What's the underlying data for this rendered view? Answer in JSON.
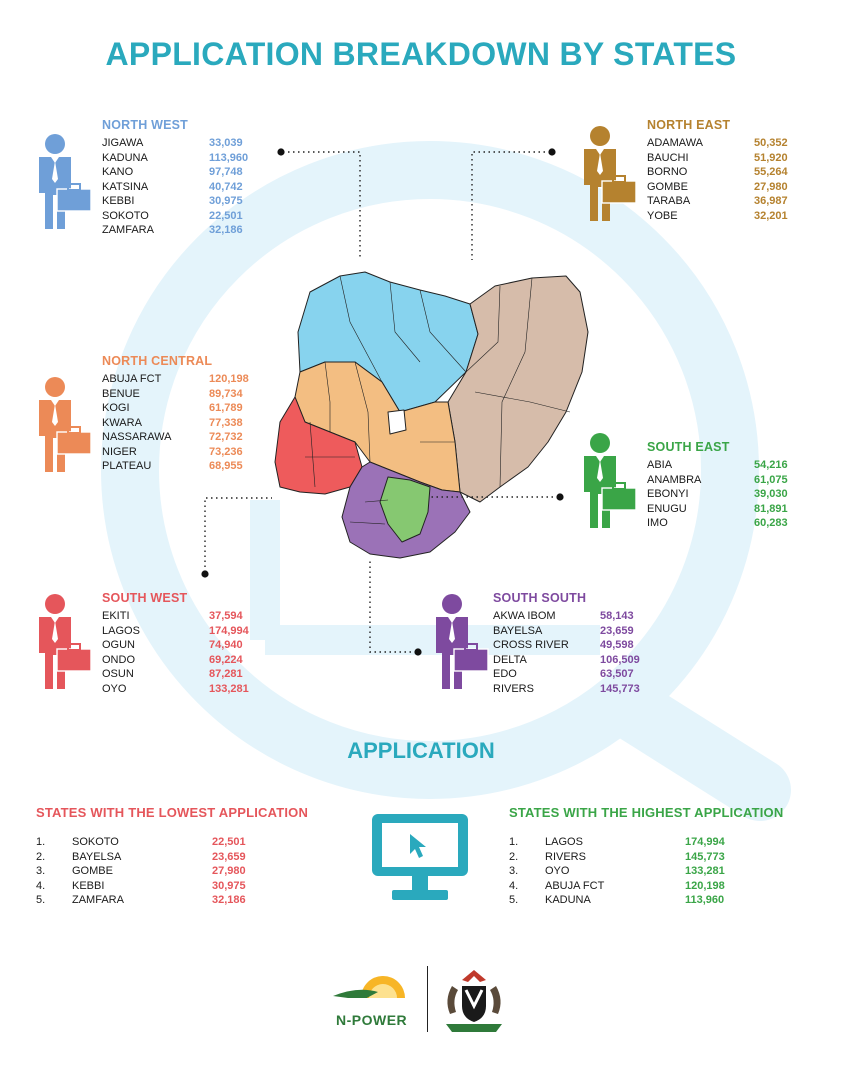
{
  "title": "APPLICATION BREAKDOWN BY STATES",
  "colors": {
    "north_west": "#6f9fd8",
    "north_east": "#b5822f",
    "north_central": "#ec8a57",
    "south_west": "#e5565b",
    "south_east": "#3aa547",
    "south_south": "#7e4a9f",
    "accent": "#2aa9bd"
  },
  "regions": {
    "north_west": {
      "name": "NORTH WEST",
      "states": [
        {
          "name": "JIGAWA",
          "value": "33,039"
        },
        {
          "name": "KADUNA",
          "value": "113,960"
        },
        {
          "name": "KANO",
          "value": "97,748"
        },
        {
          "name": "KATSINA",
          "value": "40,742"
        },
        {
          "name": "KEBBI",
          "value": "30,975"
        },
        {
          "name": "SOKOTO",
          "value": "22,501"
        },
        {
          "name": "ZAMFARA",
          "value": "32,186"
        }
      ]
    },
    "north_east": {
      "name": "NORTH EAST",
      "states": [
        {
          "name": "ADAMAWA",
          "value": "50,352"
        },
        {
          "name": "BAUCHI",
          "value": "51,920"
        },
        {
          "name": "BORNO",
          "value": "55,264"
        },
        {
          "name": "GOMBE",
          "value": "27,980"
        },
        {
          "name": "TARABA",
          "value": "36,987"
        },
        {
          "name": "YOBE",
          "value": "32,201"
        }
      ]
    },
    "north_central": {
      "name": "NORTH CENTRAL",
      "states": [
        {
          "name": "ABUJA FCT",
          "value": "120,198"
        },
        {
          "name": "BENUE",
          "value": "89,734"
        },
        {
          "name": "KOGI",
          "value": "61,789"
        },
        {
          "name": "KWARA",
          "value": "77,338"
        },
        {
          "name": "NASSARAWA",
          "value": "72,732"
        },
        {
          "name": "NIGER",
          "value": "73,236"
        },
        {
          "name": "PLATEAU",
          "value": "68,955"
        }
      ]
    },
    "south_east": {
      "name": "SOUTH EAST",
      "states": [
        {
          "name": "ABIA",
          "value": "54,216"
        },
        {
          "name": "ANAMBRA",
          "value": "61,075"
        },
        {
          "name": "EBONYI",
          "value": "39,030"
        },
        {
          "name": "ENUGU",
          "value": "81,891"
        },
        {
          "name": "IMO",
          "value": "60,283"
        }
      ]
    },
    "south_west": {
      "name": "SOUTH WEST",
      "states": [
        {
          "name": "EKITI",
          "value": "37,594"
        },
        {
          "name": "LAGOS",
          "value": "174,994"
        },
        {
          "name": "OGUN",
          "value": "74,940"
        },
        {
          "name": "ONDO",
          "value": "69,224"
        },
        {
          "name": "OSUN",
          "value": "87,281"
        },
        {
          "name": "OYO",
          "value": "133,281"
        }
      ]
    },
    "south_south": {
      "name": "SOUTH SOUTH",
      "states": [
        {
          "name": "AKWA IBOM",
          "value": "58,143"
        },
        {
          "name": "BAYELSA",
          "value": "23,659"
        },
        {
          "name": "CROSS RIVER",
          "value": "49,598"
        },
        {
          "name": "DELTA",
          "value": "106,509"
        },
        {
          "name": "EDO",
          "value": "63,507"
        },
        {
          "name": "RIVERS",
          "value": "145,773"
        }
      ]
    }
  },
  "application_heading": "APPLICATION",
  "lowest": {
    "title": "STATES WITH THE LOWEST APPLICATION",
    "rows": [
      {
        "rank": "1.",
        "name": "SOKOTO",
        "value": "22,501"
      },
      {
        "rank": "2.",
        "name": "BAYELSA",
        "value": "23,659"
      },
      {
        "rank": "3.",
        "name": "GOMBE",
        "value": "27,980"
      },
      {
        "rank": "4.",
        "name": "KEBBI",
        "value": "30,975"
      },
      {
        "rank": "5.",
        "name": "ZAMFARA",
        "value": "32,186"
      }
    ]
  },
  "highest": {
    "title": "STATES WITH THE HIGHEST APPLICATION",
    "rows": [
      {
        "rank": "1.",
        "name": "LAGOS",
        "value": "174,994"
      },
      {
        "rank": "2.",
        "name": "RIVERS",
        "value": "145,773"
      },
      {
        "rank": "3.",
        "name": "OYO",
        "value": "133,281"
      },
      {
        "rank": "4.",
        "name": "ABUJA FCT",
        "value": "120,198"
      },
      {
        "rank": "5.",
        "name": "KADUNA",
        "value": "113,960"
      }
    ]
  },
  "logo": {
    "text": "N-POWER"
  }
}
